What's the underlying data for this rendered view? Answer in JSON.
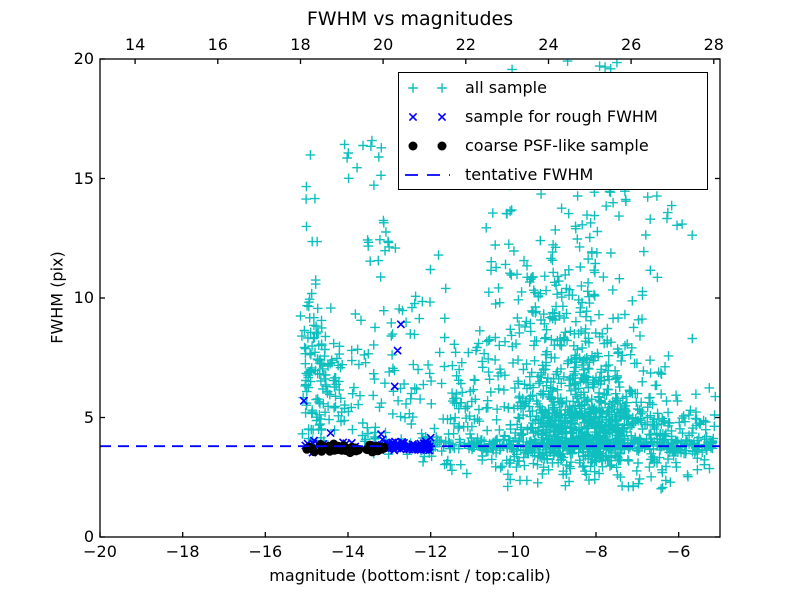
{
  "chart_data": {
    "type": "scatter",
    "title": "FWHM vs magnitudes",
    "xlabel": "magnitude (bottom:isnt / top:calib)",
    "ylabel": "FWHM (pix)",
    "xlim_bottom": [
      -20,
      -5
    ],
    "xlim_top": [
      13.15,
      28.15
    ],
    "ylim": [
      0,
      20
    ],
    "xticks_bottom": {
      "values": [
        -20,
        -18,
        -16,
        -14,
        -12,
        -10,
        -8,
        -6
      ],
      "labels": [
        "−20",
        "−18",
        "−16",
        "−14",
        "−12",
        "−10",
        "−8",
        "−6"
      ]
    },
    "xticks_top": {
      "values": [
        14,
        16,
        18,
        20,
        22,
        24,
        26,
        28
      ],
      "labels": [
        "14",
        "16",
        "18",
        "20",
        "22",
        "24",
        "26",
        "28"
      ]
    },
    "yticks": {
      "values": [
        0,
        5,
        10,
        15,
        20
      ],
      "labels": [
        "0",
        "5",
        "10",
        "15",
        "20"
      ]
    },
    "grid": false,
    "legend_position": "upper right",
    "frame_color": "#000000",
    "background": "#ffffff",
    "seed": 13,
    "series": [
      {
        "name": "all sample",
        "marker": "plus",
        "color": "#0fbfbf",
        "clusters": [
          {
            "n": 15,
            "x": [
              "gauss",
              -14.88,
              0.1,
              -15.15,
              -14.6
            ],
            "y": [
              "uniform",
              9.0,
              18.2
            ]
          },
          {
            "n": 22,
            "x": [
              "gauss",
              -14.88,
              0.13,
              -15.15,
              -14.55
            ],
            "y": [
              "uniform",
              4.6,
              9.0
            ]
          },
          {
            "n": 115,
            "x": [
              "gauss",
              -14.55,
              0.45,
              -15.15,
              -13.4
            ],
            "y": [
              "gauss",
              6.3,
              1.6,
              4.4,
              11.2
            ]
          },
          {
            "n": 12,
            "x": [
              "uniform",
              -14.15,
              -13.1
            ],
            "y": [
              "uniform",
              14.5,
              16.6
            ]
          },
          {
            "n": 14,
            "x": [
              "uniform",
              -13.6,
              -12.85
            ],
            "y": [
              "uniform",
              11.2,
              13.4
            ]
          },
          {
            "n": 95,
            "x": [
              "uniform",
              -13.4,
              -11.3
            ],
            "y": [
              "gauss",
              6.0,
              2.6,
              2.7,
              14.0
            ]
          },
          {
            "n": 620,
            "x": [
              "gauss",
              -8.3,
              1.0,
              -10.5,
              -5.3
            ],
            "y": [
              "gauss",
              4.4,
              0.8,
              2.6,
              6.5
            ]
          },
          {
            "n": 260,
            "x": [
              "gauss",
              -8.6,
              1.2,
              -11.0,
              -5.4
            ],
            "y": [
              "gauss",
              6.8,
              1.4,
              5.0,
              10.5
            ]
          },
          {
            "n": 130,
            "x": [
              "gauss",
              -8.8,
              1.0,
              -10.8,
              -6.0
            ],
            "y": [
              "gauss",
              10.3,
              1.8,
              8.0,
              15.3
            ]
          },
          {
            "n": 30,
            "x": [
              "uniform",
              -10.3,
              -6.0
            ],
            "y": [
              "uniform",
              12.5,
              15.8
            ]
          },
          {
            "n": 65,
            "x": [
              "uniform",
              -11.45,
              -10.3
            ],
            "y": [
              "gauss",
              5.2,
              1.8,
              2.8,
              12.0
            ]
          },
          {
            "n": 300,
            "x": [
              "uniform",
              -12.3,
              -5.15
            ],
            "y": [
              "gauss",
              3.85,
              0.18,
              3.3,
              4.5
            ]
          },
          {
            "n": 50,
            "x": [
              "uniform",
              -6.6,
              -5.1
            ],
            "y": [
              "gauss",
              4.2,
              0.9,
              2.5,
              6.8
            ]
          },
          {
            "n": 48,
            "x": [
              "uniform",
              -10.2,
              -5.2
            ],
            "y": [
              "uniform",
              2.0,
              3.4
            ]
          },
          {
            "n": 4,
            "x": [
              "uniform",
              -12.0,
              -10.2
            ],
            "y": [
              "uniform",
              2.6,
              3.4
            ]
          },
          {
            "n": 8,
            "x": [
              "uniform",
              -7.3,
              -5.5
            ],
            "y": [
              "uniform",
              12.2,
              14.3
            ]
          },
          {
            "n": 22,
            "x": [
              "uniform",
              -15.15,
              -13.3
            ],
            "y": [
              "gauss",
              4.35,
              0.25,
              3.9,
              5.2
            ]
          },
          {
            "n": 6,
            "x": [
              "uniform",
              -10.3,
              -7.4
            ],
            "y": [
              "uniform",
              19.55,
              19.95
            ]
          }
        ]
      },
      {
        "name": "sample for rough FWHM",
        "marker": "x",
        "color": "#0000ff",
        "clusters": [
          {
            "n": 85,
            "x": [
              "uniform",
              -13.15,
              -12.02
            ],
            "y": [
              "gauss",
              3.8,
              0.1,
              3.5,
              4.15
            ]
          },
          {
            "n": 22,
            "x": [
              "uniform",
              -15.05,
              -13.15
            ],
            "y": [
              "gauss",
              3.8,
              0.15,
              3.45,
              4.2
            ]
          }
        ],
        "points": [
          [
            -12.72,
            8.9
          ],
          [
            -12.8,
            7.8
          ],
          [
            -12.87,
            6.3
          ],
          [
            -15.07,
            5.7
          ],
          [
            -14.42,
            4.35
          ],
          [
            -13.2,
            4.3
          ],
          [
            -12.0,
            4.15
          ]
        ]
      },
      {
        "name": "coarse PSF-like sample",
        "marker": "dot",
        "color": "#000000",
        "clusters": [
          {
            "n": 34,
            "x": [
              "uniform",
              -15.02,
              -13.72
            ],
            "y": [
              "gauss",
              3.7,
              0.07,
              3.5,
              3.9
            ]
          },
          {
            "n": 17,
            "x": [
              "uniform",
              -13.55,
              -13.12
            ],
            "y": [
              "gauss",
              3.7,
              0.07,
              3.5,
              3.9
            ]
          }
        ]
      },
      {
        "name": "tentative FWHM",
        "marker": "dashed-line",
        "color": "#0000ff",
        "y": 3.8
      }
    ]
  }
}
